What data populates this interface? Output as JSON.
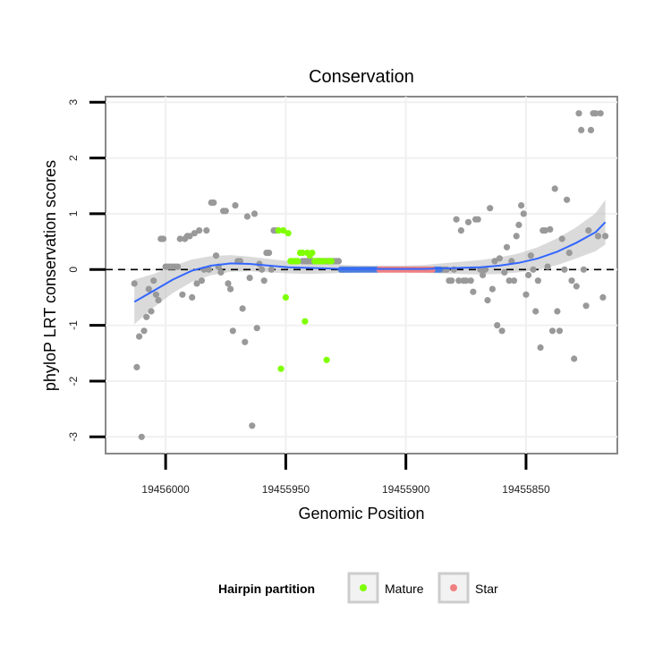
{
  "chart_data": {
    "type": "scatter",
    "title": "Conservation",
    "xlabel": "Genomic Position",
    "ylabel": "phyloP LRT conservation scores",
    "x_reversed": true,
    "xlim": [
      19456025,
      19455812
    ],
    "ylim": [
      -3.3,
      3.1
    ],
    "x_ticks": [
      19456000,
      19455950,
      19455900,
      19455850
    ],
    "x_tick_labels": [
      "19456000",
      "19455950",
      "19455900",
      "19455850"
    ],
    "y_ticks": [
      -3,
      -2,
      -1,
      0,
      1,
      2,
      3
    ],
    "y_tick_labels": [
      "-3",
      "-2",
      "-1",
      "0",
      "1",
      "2",
      "3"
    ],
    "grid": true,
    "reference_line": {
      "y": 0,
      "style": "dashed",
      "color": "#000000"
    },
    "legend": {
      "title": "Hairpin partition",
      "position": "bottom",
      "entries": [
        {
          "label": "Mature",
          "color": "#7fff00"
        },
        {
          "label": "Star",
          "color": "#f08080"
        }
      ]
    },
    "series": [
      {
        "role": "other",
        "color": "#999999",
        "points": [
          [
            19456013,
            -0.25
          ],
          [
            19456012,
            -1.75
          ],
          [
            19456011,
            -1.2
          ],
          [
            19456010,
            -3.0
          ],
          [
            19456009,
            -1.1
          ],
          [
            19456008,
            -0.85
          ],
          [
            19456007,
            -0.35
          ],
          [
            19456006,
            -0.75
          ],
          [
            19456005,
            -0.2
          ],
          [
            19456004,
            -0.45
          ],
          [
            19456003,
            -0.55
          ],
          [
            19456002,
            0.55
          ],
          [
            19456001,
            0.55
          ],
          [
            19456000,
            0.05
          ],
          [
            19455999,
            0.05
          ],
          [
            19455998,
            0.05
          ],
          [
            19455997,
            0.05
          ],
          [
            19455996,
            0.05
          ],
          [
            19455995,
            0.05
          ],
          [
            19455994,
            0.55
          ],
          [
            19455993,
            -0.45
          ],
          [
            19455992,
            0.55
          ],
          [
            19455991,
            0.6
          ],
          [
            19455990,
            0.6
          ],
          [
            19455989,
            -0.5
          ],
          [
            19455988,
            0.65
          ],
          [
            19455987,
            -0.25
          ],
          [
            19455986,
            0.7
          ],
          [
            19455985,
            -0.2
          ],
          [
            19455984,
            0.0
          ],
          [
            19455983,
            0.7
          ],
          [
            19455982,
            0.0
          ],
          [
            19455981,
            1.2
          ],
          [
            19455980,
            1.2
          ],
          [
            19455979,
            0.25
          ],
          [
            19455978,
            0.05
          ],
          [
            19455977,
            -0.05
          ],
          [
            19455976,
            1.05
          ],
          [
            19455975,
            1.05
          ],
          [
            19455974,
            -0.25
          ],
          [
            19455973,
            -0.35
          ],
          [
            19455972,
            -1.1
          ],
          [
            19455971,
            1.15
          ],
          [
            19455970,
            0.15
          ],
          [
            19455969,
            0.15
          ],
          [
            19455968,
            -0.7
          ],
          [
            19455967,
            -1.3
          ],
          [
            19455966,
            0.95
          ],
          [
            19455965,
            -0.15
          ],
          [
            19455964,
            -2.8
          ],
          [
            19455963,
            1.0
          ],
          [
            19455962,
            -1.05
          ],
          [
            19455961,
            0.1
          ],
          [
            19455960,
            0.0
          ],
          [
            19455959,
            -0.2
          ],
          [
            19455958,
            0.3
          ],
          [
            19455957,
            0.3
          ],
          [
            19455956,
            0.0
          ],
          [
            19455955,
            0.7
          ],
          [
            19455954,
            0.7
          ],
          [
            19455943,
            0.15
          ],
          [
            19455942,
            0.15
          ],
          [
            19455941,
            0.15
          ],
          [
            19455940,
            0.15
          ],
          [
            19455939,
            0.15
          ],
          [
            19455938,
            0.15
          ],
          [
            19455937,
            0.15
          ],
          [
            19455936,
            0.15
          ],
          [
            19455935,
            0.15
          ],
          [
            19455934,
            0.15
          ],
          [
            19455933,
            0.15
          ],
          [
            19455932,
            0.15
          ],
          [
            19455931,
            0.15
          ],
          [
            19455930,
            0.15
          ],
          [
            19455929,
            0.15
          ],
          [
            19455928,
            0.15
          ],
          [
            19455885,
            0.0
          ],
          [
            19455884,
            0.0
          ],
          [
            19455883,
            0.0
          ],
          [
            19455882,
            -0.2
          ],
          [
            19455881,
            -0.2
          ],
          [
            19455880,
            0.0
          ],
          [
            19455879,
            0.9
          ],
          [
            19455878,
            -0.2
          ],
          [
            19455877,
            0.7
          ],
          [
            19455876,
            -0.2
          ],
          [
            19455875,
            -0.2
          ],
          [
            19455874,
            0.85
          ],
          [
            19455873,
            -0.2
          ],
          [
            19455872,
            -0.4
          ],
          [
            19455871,
            0.9
          ],
          [
            19455870,
            0.9
          ],
          [
            19455869,
            0.0
          ],
          [
            19455868,
            -0.1
          ],
          [
            19455867,
            0.0
          ],
          [
            19455866,
            -0.55
          ],
          [
            19455865,
            1.1
          ],
          [
            19455864,
            -0.35
          ],
          [
            19455863,
            0.15
          ],
          [
            19455862,
            -1.0
          ],
          [
            19455861,
            0.2
          ],
          [
            19455860,
            -1.1
          ],
          [
            19455859,
            -0.05
          ],
          [
            19455858,
            0.4
          ],
          [
            19455857,
            -0.2
          ],
          [
            19455856,
            0.15
          ],
          [
            19455855,
            -0.2
          ],
          [
            19455854,
            0.6
          ],
          [
            19455853,
            0.8
          ],
          [
            19455852,
            1.15
          ],
          [
            19455851,
            1.0
          ],
          [
            19455850,
            -0.45
          ],
          [
            19455849,
            -0.1
          ],
          [
            19455848,
            0.25
          ],
          [
            19455847,
            0.0
          ],
          [
            19455846,
            -0.75
          ],
          [
            19455845,
            -0.2
          ],
          [
            19455844,
            -1.4
          ],
          [
            19455843,
            0.7
          ],
          [
            19455842,
            0.7
          ],
          [
            19455841,
            0.05
          ],
          [
            19455840,
            0.72
          ],
          [
            19455839,
            -1.1
          ],
          [
            19455838,
            1.45
          ],
          [
            19455837,
            -0.75
          ],
          [
            19455836,
            -1.1
          ],
          [
            19455835,
            0.55
          ],
          [
            19455834,
            0.0
          ],
          [
            19455833,
            1.25
          ],
          [
            19455832,
            0.3
          ],
          [
            19455831,
            -0.2
          ],
          [
            19455830,
            -1.6
          ],
          [
            19455829,
            -0.3
          ],
          [
            19455828,
            2.8
          ],
          [
            19455827,
            2.5
          ],
          [
            19455826,
            0.0
          ],
          [
            19455825,
            -0.65
          ],
          [
            19455824,
            0.7
          ],
          [
            19455823,
            2.5
          ],
          [
            19455822,
            2.8
          ],
          [
            19455821,
            2.8
          ],
          [
            19455820,
            0.6
          ],
          [
            19455819,
            2.8
          ],
          [
            19455818,
            -0.5
          ],
          [
            19455817,
            0.6
          ]
        ]
      },
      {
        "role": "loop",
        "color": "#4a7ddb",
        "points": [
          [
            19455927,
            0.0
          ],
          [
            19455926,
            0.0
          ],
          [
            19455925,
            0.0
          ],
          [
            19455924,
            0.0
          ],
          [
            19455923,
            0.0
          ],
          [
            19455922,
            0.0
          ],
          [
            19455921,
            0.0
          ],
          [
            19455920,
            0.0
          ],
          [
            19455919,
            0.0
          ],
          [
            19455918,
            0.0
          ],
          [
            19455917,
            0.0
          ],
          [
            19455916,
            0.0
          ],
          [
            19455915,
            0.0
          ],
          [
            19455914,
            0.0
          ],
          [
            19455913,
            0.0
          ],
          [
            19455912,
            0.0
          ],
          [
            19455888,
            0.0
          ],
          [
            19455887,
            0.0
          ],
          [
            19455886,
            0.0
          ]
        ]
      },
      {
        "name": "Mature",
        "color": "#7fff00",
        "points": [
          [
            19455953,
            0.7
          ],
          [
            19455952,
            -1.78
          ],
          [
            19455951,
            0.7
          ],
          [
            19455950,
            -0.5
          ],
          [
            19455949,
            0.65
          ],
          [
            19455948,
            0.15
          ],
          [
            19455947,
            0.15
          ],
          [
            19455946,
            0.15
          ],
          [
            19455945,
            0.15
          ],
          [
            19455944,
            0.3
          ],
          [
            19455943,
            0.3
          ],
          [
            19455942,
            -0.93
          ],
          [
            19455941,
            0.3
          ],
          [
            19455940,
            0.25
          ],
          [
            19455939,
            0.3
          ],
          [
            19455938,
            0.15
          ],
          [
            19455937,
            0.15
          ],
          [
            19455936,
            0.15
          ],
          [
            19455935,
            0.15
          ],
          [
            19455934,
            0.15
          ],
          [
            19455933,
            -1.62
          ],
          [
            19455932,
            0.15
          ],
          [
            19455931,
            0.15
          ]
        ]
      },
      {
        "name": "Star",
        "color": "#f08080",
        "points": [
          [
            19455911,
            0.0
          ],
          [
            19455910,
            0.0
          ],
          [
            19455909,
            0.0
          ],
          [
            19455908,
            0.0
          ],
          [
            19455907,
            0.0
          ],
          [
            19455906,
            0.0
          ],
          [
            19455905,
            0.0
          ],
          [
            19455904,
            0.0
          ],
          [
            19455903,
            0.0
          ],
          [
            19455902,
            0.0
          ],
          [
            19455901,
            0.0
          ],
          [
            19455900,
            0.0
          ],
          [
            19455899,
            0.0
          ],
          [
            19455898,
            0.0
          ],
          [
            19455897,
            0.0
          ],
          [
            19455896,
            0.0
          ],
          [
            19455895,
            0.0
          ],
          [
            19455894,
            0.0
          ],
          [
            19455893,
            0.0
          ],
          [
            19455892,
            0.0
          ],
          [
            19455891,
            0.0
          ],
          [
            19455890,
            0.0
          ],
          [
            19455889,
            0.0
          ]
        ]
      }
    ],
    "smooth": {
      "color": "#3366ff",
      "band_color": "#bbbbbb",
      "points": [
        [
          19456013,
          -0.58,
          -0.98,
          -0.18
        ],
        [
          19456005,
          -0.38,
          -0.68,
          -0.08
        ],
        [
          19455997,
          -0.18,
          -0.42,
          0.06
        ],
        [
          19455989,
          -0.02,
          -0.22,
          0.18
        ],
        [
          19455981,
          0.07,
          -0.1,
          0.24
        ],
        [
          19455973,
          0.11,
          -0.04,
          0.26
        ],
        [
          19455965,
          0.1,
          -0.03,
          0.23
        ],
        [
          19455957,
          0.07,
          -0.05,
          0.19
        ],
        [
          19455949,
          0.04,
          -0.07,
          0.15
        ],
        [
          19455941,
          0.03,
          -0.08,
          0.14
        ],
        [
          19455933,
          0.02,
          -0.07,
          0.11
        ],
        [
          19455925,
          0.01,
          -0.06,
          0.08
        ],
        [
          19455917,
          0.01,
          -0.05,
          0.07
        ],
        [
          19455909,
          0.01,
          -0.05,
          0.07
        ],
        [
          19455901,
          0.01,
          -0.05,
          0.07
        ],
        [
          19455893,
          0.01,
          -0.06,
          0.08
        ],
        [
          19455885,
          0.02,
          -0.07,
          0.11
        ],
        [
          19455877,
          0.03,
          -0.08,
          0.14
        ],
        [
          19455869,
          0.04,
          -0.09,
          0.17
        ],
        [
          19455861,
          0.07,
          -0.08,
          0.22
        ],
        [
          19455853,
          0.12,
          -0.05,
          0.29
        ],
        [
          19455845,
          0.2,
          0.0,
          0.4
        ],
        [
          19455837,
          0.32,
          0.08,
          0.56
        ],
        [
          19455829,
          0.48,
          0.2,
          0.76
        ],
        [
          19455821,
          0.67,
          0.33,
          1.01
        ],
        [
          19455817,
          0.85,
          0.45,
          1.25
        ]
      ]
    }
  }
}
